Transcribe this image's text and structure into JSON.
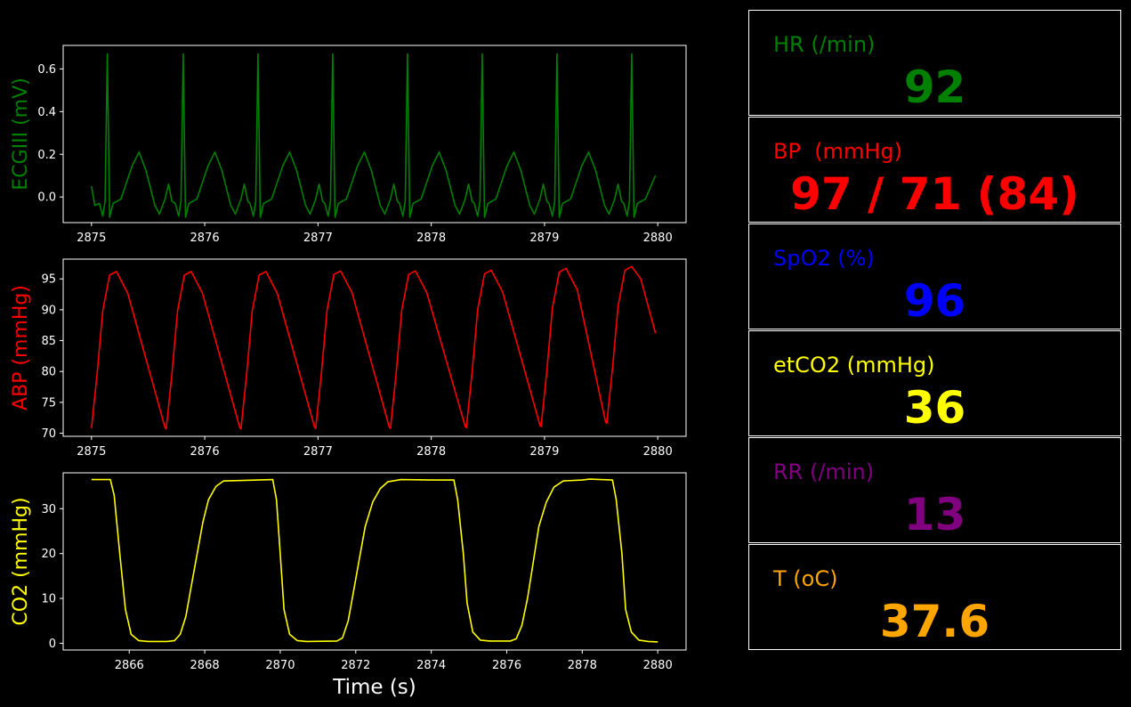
{
  "x_axis_label": "Time (s)",
  "chart_data": [
    {
      "type": "line",
      "ylabel": "ECGIII (mV)",
      "color": "#008000",
      "xlim": [
        2874.75,
        2880.25
      ],
      "ylim": [
        -0.12,
        0.71
      ],
      "xticks": [
        2875,
        2876,
        2877,
        2878,
        2879,
        2880
      ],
      "yticks": [
        0.0,
        0.2,
        0.4,
        0.6
      ],
      "ytick_labels": [
        "0.0",
        "0.2",
        "0.4",
        "0.6"
      ],
      "beat_times": [
        2875.14,
        2875.81,
        2876.47,
        2877.13,
        2877.79,
        2878.45,
        2879.11,
        2879.77
      ],
      "r_peak": 0.67,
      "t_wave_peak": 0.21,
      "baseline": -0.03,
      "trough": -0.09,
      "series": [
        {
          "x_start": 2875.0,
          "x_end": 2879.98
        }
      ]
    },
    {
      "type": "line",
      "ylabel": "ABP (mmHg)",
      "color": "#ff0000",
      "xlim": [
        2874.75,
        2880.25
      ],
      "ylim": [
        69.5,
        98.2
      ],
      "xticks": [
        2875,
        2876,
        2877,
        2878,
        2879,
        2880
      ],
      "yticks": [
        70,
        75,
        80,
        85,
        90,
        95
      ],
      "ytick_labels": [
        "70",
        "75",
        "80",
        "85",
        "90",
        "95"
      ],
      "beat_times": [
        2875.0,
        2875.66,
        2876.32,
        2876.98,
        2877.64,
        2878.31,
        2878.97,
        2879.55
      ],
      "systolic": [
        96.2,
        96.2,
        96.2,
        96.3,
        96.3,
        96.4,
        96.7,
        97.0
      ],
      "diastolic": [
        70.8,
        70.7,
        70.7,
        70.8,
        70.8,
        70.9,
        71.1,
        71.6
      ],
      "end_value": 86.2,
      "series": [
        {
          "x_start": 2875.0,
          "x_end": 2879.98
        }
      ]
    },
    {
      "type": "line",
      "ylabel": "CO2 (mmHg)",
      "color": "#ffff00",
      "xlim": [
        2864.25,
        2880.75
      ],
      "ylim": [
        -1.5,
        38.0
      ],
      "xticks": [
        2866,
        2868,
        2870,
        2872,
        2874,
        2876,
        2878,
        2880
      ],
      "yticks": [
        0,
        10,
        20,
        30
      ],
      "ytick_labels": [
        "0",
        "10",
        "20",
        "30"
      ],
      "points": [
        [
          2865.0,
          36.5
        ],
        [
          2865.5,
          36.5
        ],
        [
          2865.6,
          33.0
        ],
        [
          2865.75,
          20.0
        ],
        [
          2865.9,
          7.5
        ],
        [
          2866.05,
          2.0
        ],
        [
          2866.25,
          0.6
        ],
        [
          2866.5,
          0.4
        ],
        [
          2867.0,
          0.4
        ],
        [
          2867.2,
          0.6
        ],
        [
          2867.35,
          2.0
        ],
        [
          2867.5,
          6.0
        ],
        [
          2867.65,
          13.0
        ],
        [
          2867.8,
          20.0
        ],
        [
          2867.95,
          27.0
        ],
        [
          2868.1,
          32.0
        ],
        [
          2868.3,
          35.0
        ],
        [
          2868.5,
          36.2
        ],
        [
          2869.0,
          36.3
        ],
        [
          2869.8,
          36.5
        ],
        [
          2869.9,
          32.0
        ],
        [
          2870.0,
          20.0
        ],
        [
          2870.1,
          7.5
        ],
        [
          2870.25,
          2.0
        ],
        [
          2870.45,
          0.6
        ],
        [
          2870.7,
          0.4
        ],
        [
          2871.5,
          0.5
        ],
        [
          2871.65,
          1.2
        ],
        [
          2871.8,
          5.0
        ],
        [
          2871.95,
          12.0
        ],
        [
          2872.1,
          19.0
        ],
        [
          2872.25,
          26.0
        ],
        [
          2872.45,
          31.5
        ],
        [
          2872.65,
          34.5
        ],
        [
          2872.85,
          36.0
        ],
        [
          2873.2,
          36.5
        ],
        [
          2874.0,
          36.4
        ],
        [
          2874.6,
          36.4
        ],
        [
          2874.7,
          32.0
        ],
        [
          2874.85,
          20.0
        ],
        [
          2874.95,
          9.0
        ],
        [
          2875.1,
          2.5
        ],
        [
          2875.3,
          0.7
        ],
        [
          2875.55,
          0.5
        ],
        [
          2876.1,
          0.5
        ],
        [
          2876.25,
          1.0
        ],
        [
          2876.4,
          4.0
        ],
        [
          2876.55,
          10.0
        ],
        [
          2876.7,
          18.0
        ],
        [
          2876.85,
          26.0
        ],
        [
          2877.05,
          31.5
        ],
        [
          2877.25,
          34.8
        ],
        [
          2877.5,
          36.2
        ],
        [
          2878.0,
          36.4
        ],
        [
          2878.2,
          36.6
        ],
        [
          2878.8,
          36.4
        ],
        [
          2878.9,
          32.0
        ],
        [
          2879.05,
          20.0
        ],
        [
          2879.15,
          7.5
        ],
        [
          2879.3,
          2.5
        ],
        [
          2879.5,
          0.7
        ],
        [
          2879.75,
          0.4
        ],
        [
          2880.0,
          0.3
        ]
      ]
    }
  ],
  "vitals": [
    {
      "label": "HR (/min)",
      "value": "92",
      "color": "#008000"
    },
    {
      "label": "BP  (mmHg)",
      "value": "97 / 71 (84)",
      "color": "#ff0000"
    },
    {
      "label": "SpO2 (%)",
      "value": "96",
      "color": "#0000ff"
    },
    {
      "label": "etCO2 (mmHg)",
      "value": "36",
      "color": "#ffff00"
    },
    {
      "label": "RR (/min)",
      "value": "13",
      "color": "#800080"
    },
    {
      "label": "T (oC)",
      "value": "37.6",
      "color": "#ffa500"
    }
  ]
}
